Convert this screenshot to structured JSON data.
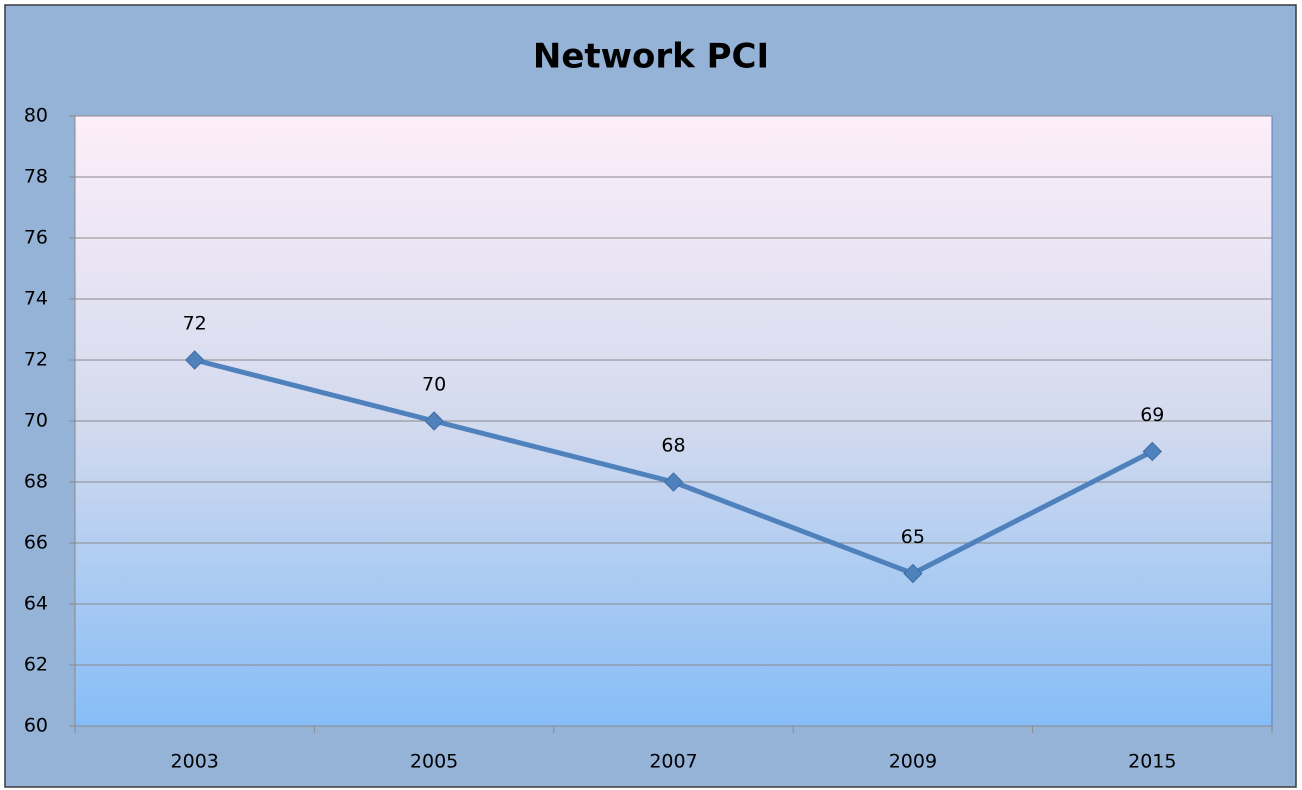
{
  "chart_data": {
    "type": "line",
    "title": "Network PCI",
    "categories": [
      "2003",
      "2005",
      "2007",
      "2009",
      "2015"
    ],
    "series": [
      {
        "color": "#4f81bd",
        "values": [
          72,
          70,
          68,
          65,
          69
        ]
      }
    ],
    "ylim": [
      60,
      80
    ],
    "yticks": [
      60,
      62,
      64,
      66,
      68,
      70,
      72,
      74,
      76,
      78,
      80
    ],
    "grid": true,
    "data_labels": true
  }
}
